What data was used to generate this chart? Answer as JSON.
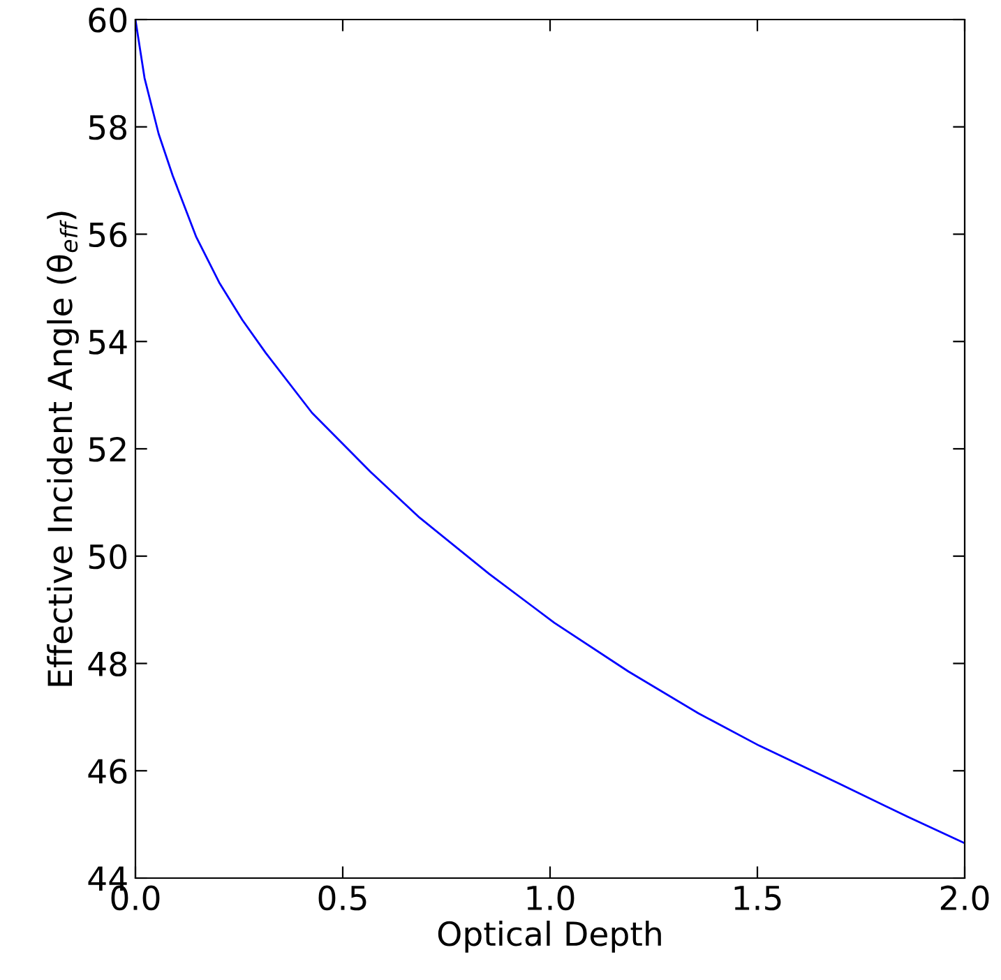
{
  "chart_data": {
    "type": "line",
    "xlabel": "Optical Depth",
    "ylabel": "Effective Incident Angle (θ$_{eff}$)",
    "x": [
      0,
      0.022,
      0.056,
      0.09,
      0.146,
      0.202,
      0.258,
      0.314,
      0.426,
      0.567,
      0.685,
      0.853,
      1.01,
      1.189,
      1.358,
      1.504,
      1.695,
      1.863,
      2.0
    ],
    "series": [
      {
        "color": "#0000ff",
        "values": [
          60,
          58.91,
          57.87,
          57.09,
          55.96,
          55.1,
          54.4,
          53.79,
          52.67,
          51.57,
          50.72,
          49.67,
          48.76,
          47.85,
          47.07,
          46.47,
          45.77,
          45.14,
          44.65
        ]
      }
    ],
    "xlim": [
      0,
      2
    ],
    "xticks": [
      {
        "value": 0,
        "label": "0.0"
      },
      0.5,
      {
        "value": 1,
        "label": "1.0"
      },
      1.5,
      {
        "value": 2,
        "label": "2.0"
      }
    ],
    "ylim": [
      44,
      60
    ],
    "yticks": [
      44,
      46,
      48,
      50,
      52,
      54,
      56,
      58,
      60
    ],
    "grid": false,
    "legend": false,
    "marker": "none",
    "line_style": "solid"
  }
}
